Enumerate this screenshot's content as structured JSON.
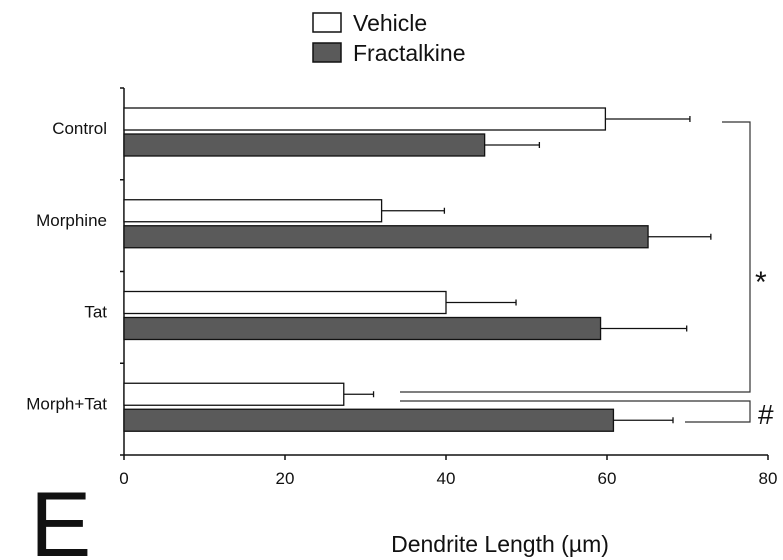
{
  "chart_data": {
    "type": "bar",
    "orientation": "horizontal",
    "panel_label": "E",
    "categories": [
      "Control",
      "Morphine",
      "Tat",
      "Morph+Tat"
    ],
    "series": [
      {
        "name": "Vehicle",
        "color": "#ffffff",
        "values": [
          59.8,
          32.0,
          40.0,
          27.3
        ],
        "errors": [
          10.5,
          7.8,
          8.7,
          3.7
        ]
      },
      {
        "name": "Fractalkine",
        "color": "#5a5a5a",
        "values": [
          44.8,
          65.1,
          59.2,
          60.8
        ],
        "errors": [
          6.8,
          7.8,
          10.7,
          7.4
        ]
      }
    ],
    "xlabel": "Dendrite Length (µm)",
    "xlim": [
      0,
      80
    ],
    "xticks": [
      "0",
      "20",
      "40",
      "60",
      "80"
    ],
    "legend_position": "top-center",
    "grid": false,
    "annotations": [
      "*",
      "#"
    ]
  }
}
